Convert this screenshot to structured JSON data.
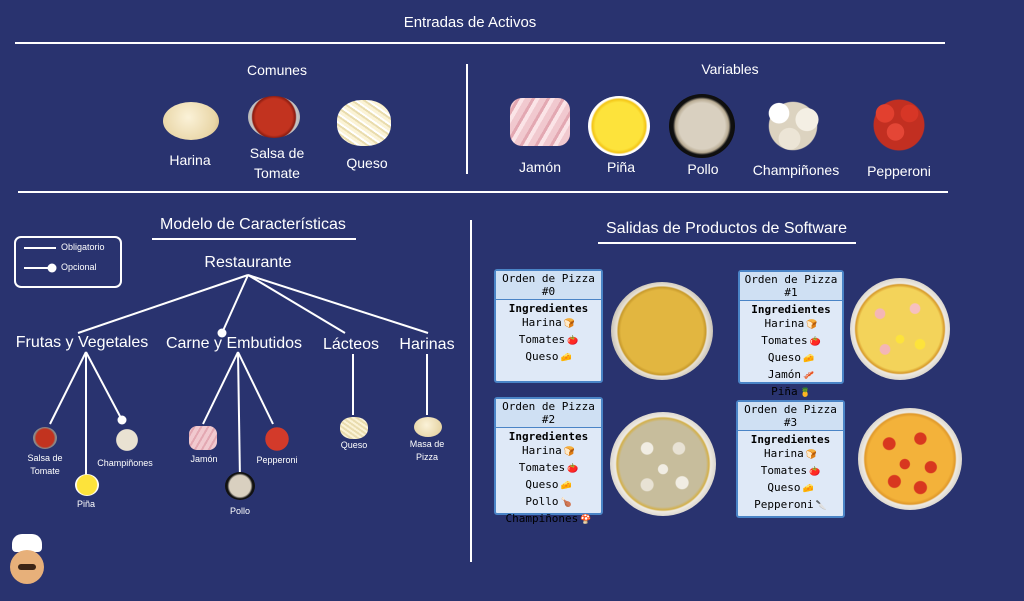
{
  "titles": {
    "inputs": "Entradas de Activos",
    "common": "Comunes",
    "variable": "Variables",
    "model": "Modelo de Características",
    "outputs": "Salidas de Productos de Software"
  },
  "common_items": [
    "Harina",
    "Salsa de Tomate",
    "Queso"
  ],
  "variable_items": [
    "Jamón",
    "Piña",
    "Pollo",
    "Champiñones",
    "Pepperoni"
  ],
  "legend": {
    "mandatory": "Obligatorio",
    "optional": "Opcional"
  },
  "feature_model": {
    "root": "Restaurante",
    "groups": [
      "Frutas y Vegetales",
      "Carne y Embutidos",
      "Lácteos",
      "Harinas"
    ],
    "leaves": {
      "salsa": "Salsa de Tomate",
      "pina": "Piña",
      "champinones": "Champiñones",
      "jamon": "Jamón",
      "pollo": "Pollo",
      "pepperoni": "Pepperoni",
      "queso": "Queso",
      "masa": "Masa de Pizza"
    }
  },
  "orders": [
    {
      "title": "Orden de Pizza #0",
      "sub": "Ingredientes",
      "items": [
        "Harina",
        "Tomates",
        "Queso"
      ]
    },
    {
      "title": "Orden de Pizza #1",
      "sub": "Ingredientes",
      "items": [
        "Harina",
        "Tomates",
        "Queso",
        "Jamón",
        "Piña"
      ]
    },
    {
      "title": "Orden de Pizza #2",
      "sub": "Ingredientes",
      "items": [
        "Harina",
        "Tomates",
        "Queso",
        "Pollo",
        "Champiñones"
      ]
    },
    {
      "title": "Orden de Pizza #3",
      "sub": "Ingredientes",
      "items": [
        "Harina",
        "Tomates",
        "Queso",
        "Pepperoni"
      ]
    }
  ],
  "colors": {
    "background": "#29336f",
    "card_border": "#4a84c6",
    "card_bg": "#dfe9f7"
  }
}
